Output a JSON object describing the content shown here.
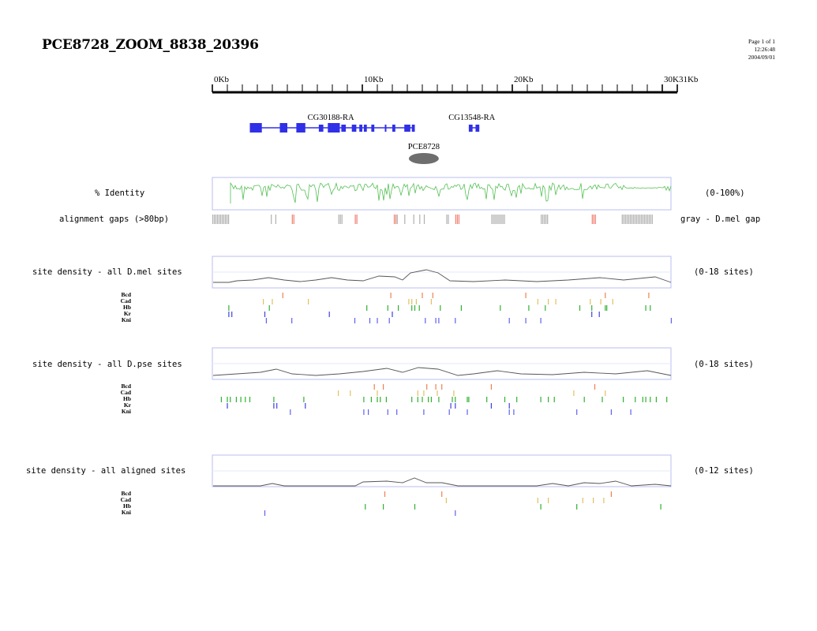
{
  "header": {
    "title": "PCE8728_ZOOM_8838_20396",
    "page": "Page 1 of 1",
    "time": "12:26:48",
    "date": "2004/09/01"
  },
  "ruler": {
    "range_kb": [
      0,
      31
    ],
    "ticks": [
      {
        "label": "0Kb",
        "kb": 0
      },
      {
        "label": "10Kb",
        "kb": 10
      },
      {
        "label": "20Kb",
        "kb": 20
      },
      {
        "label": "30K31Kb",
        "kb": 30
      }
    ]
  },
  "genes": [
    {
      "name": "CG30188-RA",
      "exons_kb": [
        [
          2.5,
          3.3
        ],
        [
          4.5,
          5.0
        ],
        [
          5.6,
          6.2
        ],
        [
          7.1,
          7.4
        ],
        [
          7.7,
          8.5
        ],
        [
          8.6,
          8.9
        ],
        [
          9.3,
          9.6
        ],
        [
          9.8,
          10.0
        ],
        [
          10.1,
          10.3
        ],
        [
          10.6,
          10.8
        ],
        [
          11.5,
          11.6
        ],
        [
          12.0,
          12.2
        ],
        [
          12.8,
          13.2
        ],
        [
          13.3,
          13.5
        ]
      ],
      "span_kb": [
        2.5,
        13.5
      ],
      "label_kb": 7.9
    },
    {
      "name": "CG13548-RA",
      "exons_kb": [
        [
          17.1,
          17.35
        ],
        [
          17.55,
          17.8
        ]
      ],
      "span_kb": [
        17.1,
        17.8
      ],
      "label_kb": 17.3
    }
  ],
  "element": {
    "name": "PCE8728",
    "kb": 14.1
  },
  "identity": {
    "label": "% Identity",
    "range": "(0-100%)",
    "gaps_label": "alignment gaps (>80bp)",
    "gaps_note": "gray - D.mel gap",
    "gray_gaps_kb": [
      [
        0.0,
        1.1
      ],
      [
        3.9,
        4.0
      ],
      [
        4.2,
        4.3
      ],
      [
        8.4,
        8.7
      ],
      [
        12.3,
        12.4
      ],
      [
        12.8,
        12.9
      ],
      [
        13.4,
        13.5
      ],
      [
        13.8,
        13.9
      ],
      [
        14.1,
        14.2
      ],
      [
        15.6,
        15.8
      ],
      [
        18.6,
        19.5
      ],
      [
        21.9,
        22.4
      ],
      [
        27.3,
        29.4
      ]
    ],
    "red_gaps_kb": [
      [
        5.3,
        5.5
      ],
      [
        9.5,
        9.7
      ],
      [
        12.1,
        12.3
      ],
      [
        16.2,
        16.5
      ],
      [
        25.3,
        25.6
      ]
    ]
  },
  "tracks": [
    {
      "label": "site density - all D.mel sites",
      "range": "(0-18 sites)",
      "tfs": [
        {
          "name": "Bcd",
          "color": "#f08050",
          "sites_kb": [
            4.7,
            11.9,
            14.0,
            14.7,
            20.9,
            26.2,
            29.1
          ]
        },
        {
          "name": "Cad",
          "color": "#e0c060",
          "sites_kb": [
            3.4,
            4.0,
            6.4,
            13.1,
            13.3,
            13.6,
            14.6,
            21.7,
            22.4,
            22.9,
            25.2,
            25.9,
            26.7
          ]
        },
        {
          "name": "Hb",
          "color": "#30b030",
          "sites_kb": [
            1.1,
            3.8,
            10.3,
            11.7,
            12.4,
            13.3,
            13.5,
            13.8,
            15.2,
            16.6,
            19.2,
            21.1,
            22.2,
            24.5,
            25.3,
            26.2,
            26.3,
            28.9,
            29.2
          ]
        },
        {
          "name": "Kr",
          "color": "#4040e0",
          "sites_kb": [
            1.1,
            1.3,
            3.5,
            7.8,
            12.0,
            25.3,
            25.8
          ]
        },
        {
          "name": "Kni",
          "color": "#6060f0",
          "sites_kb": [
            3.6,
            5.3,
            9.5,
            10.5,
            11.0,
            11.8,
            14.2,
            14.9,
            15.1,
            16.2,
            19.8,
            20.9,
            21.9,
            30.6
          ]
        }
      ]
    },
    {
      "label": "site density - all D.pse sites",
      "range": "(0-18 sites)",
      "tfs": [
        {
          "name": "Bcd",
          "color": "#f08050",
          "sites_kb": [
            10.8,
            11.4,
            14.3,
            14.9,
            15.3,
            18.6,
            25.5
          ]
        },
        {
          "name": "Cad",
          "color": "#e0c060",
          "sites_kb": [
            8.4,
            9.2,
            11.0,
            13.7,
            14.1,
            15.0,
            16.1,
            24.1,
            26.2
          ]
        },
        {
          "name": "Hb",
          "color": "#30b030",
          "sites_kb": [
            0.6,
            1.0,
            1.2,
            1.6,
            1.9,
            2.2,
            2.5,
            4.1,
            6.1,
            10.1,
            10.6,
            11.0,
            11.2,
            11.6,
            13.3,
            13.7,
            14.0,
            14.4,
            14.6,
            15.1,
            16.0,
            16.2,
            17.0,
            17.1,
            18.3,
            19.5,
            20.3,
            21.9,
            22.4,
            22.8,
            24.8,
            26.0,
            27.4,
            28.2,
            28.7,
            28.9,
            29.2,
            29.6,
            30.3
          ]
        },
        {
          "name": "Kr",
          "color": "#4040e0",
          "sites_kb": [
            1.0,
            4.1,
            4.3,
            6.2,
            15.9,
            16.2,
            18.6,
            19.8
          ]
        },
        {
          "name": "Kni",
          "color": "#6060f0",
          "sites_kb": [
            5.2,
            10.1,
            10.4,
            11.7,
            12.3,
            14.1,
            15.8,
            17.0,
            19.8,
            20.1,
            24.3,
            26.6,
            27.9
          ]
        }
      ]
    },
    {
      "label": "site density - all aligned sites",
      "range": "(0-12 sites)",
      "tfs": [
        {
          "name": "Bcd",
          "color": "#f08050",
          "sites_kb": [
            11.5,
            15.3,
            26.6
          ]
        },
        {
          "name": "Cad",
          "color": "#e0c060",
          "sites_kb": [
            15.6,
            21.7,
            22.4,
            24.7,
            25.4,
            26.1
          ]
        },
        {
          "name": "Hb",
          "color": "#30b030",
          "sites_kb": [
            10.2,
            11.4,
            13.5,
            21.9,
            24.3,
            29.9
          ]
        },
        {
          "name": "Kni",
          "color": "#6060f0",
          "sites_kb": [
            3.5,
            16.2
          ]
        }
      ]
    }
  ]
}
